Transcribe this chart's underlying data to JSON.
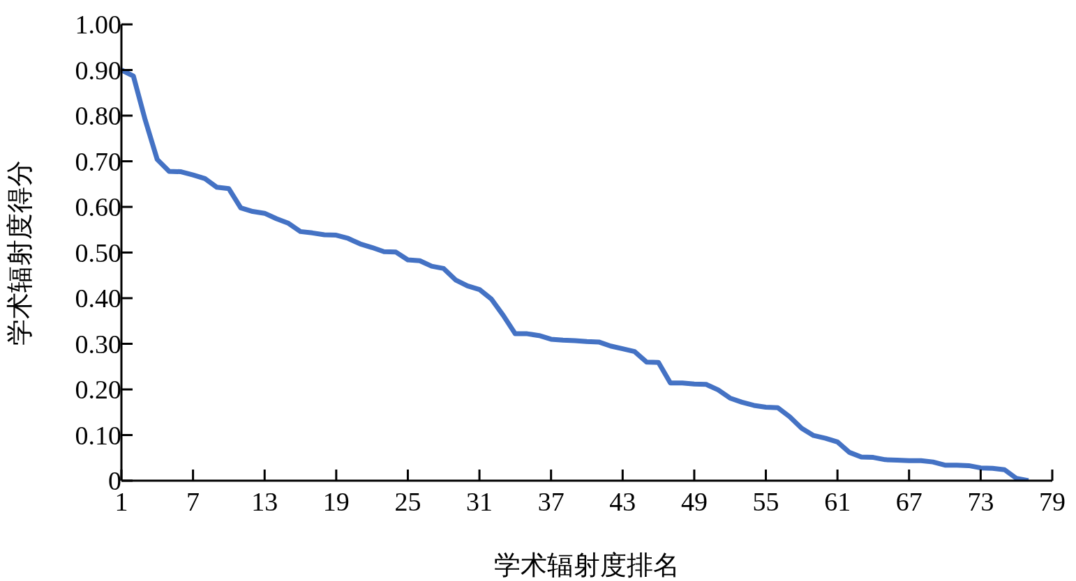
{
  "chart_data": {
    "type": "line",
    "xlabel": "学术辐射度排名",
    "ylabel": "学术辐射度得分",
    "x": [
      1,
      2,
      3,
      4,
      5,
      6,
      7,
      8,
      9,
      10,
      11,
      12,
      13,
      14,
      15,
      16,
      17,
      18,
      19,
      20,
      21,
      22,
      23,
      24,
      25,
      26,
      27,
      28,
      29,
      30,
      31,
      32,
      33,
      34,
      35,
      36,
      37,
      38,
      39,
      40,
      41,
      42,
      43,
      44,
      45,
      46,
      47,
      48,
      49,
      50,
      51,
      52,
      53,
      54,
      55,
      56,
      57,
      58,
      59,
      60,
      61,
      62,
      63,
      64,
      65,
      66,
      67,
      68,
      69,
      70,
      71,
      72,
      73,
      74,
      75,
      76,
      77
    ],
    "series": [
      {
        "color": "#4472c4",
        "values": [
          0.9,
          0.887,
          0.79,
          0.704,
          0.678,
          0.677,
          0.67,
          0.662,
          0.643,
          0.64,
          0.598,
          0.59,
          0.586,
          0.574,
          0.564,
          0.546,
          0.543,
          0.539,
          0.538,
          0.531,
          0.519,
          0.511,
          0.502,
          0.501,
          0.484,
          0.482,
          0.47,
          0.465,
          0.44,
          0.427,
          0.419,
          0.398,
          0.362,
          0.322,
          0.322,
          0.318,
          0.31,
          0.308,
          0.307,
          0.305,
          0.304,
          0.295,
          0.289,
          0.283,
          0.26,
          0.259,
          0.214,
          0.214,
          0.212,
          0.211,
          0.199,
          0.181,
          0.172,
          0.165,
          0.161,
          0.16,
          0.14,
          0.115,
          0.099,
          0.093,
          0.085,
          0.062,
          0.052,
          0.051,
          0.046,
          0.045,
          0.044,
          0.044,
          0.041,
          0.034,
          0.034,
          0.033,
          0.028,
          0.027,
          0.024,
          0.005,
          0
        ]
      }
    ],
    "xlim": [
      1,
      79
    ],
    "xticks": [
      1,
      7,
      13,
      19,
      25,
      31,
      37,
      43,
      49,
      55,
      61,
      67,
      73,
      79
    ],
    "ylim": [
      0,
      1
    ],
    "yticks": [
      0,
      {
        "value": 0.1,
        "label": "0.10"
      },
      {
        "value": 0.2,
        "label": "0.20"
      },
      {
        "value": 0.3,
        "label": "0.30"
      },
      {
        "value": 0.4,
        "label": "0.40"
      },
      {
        "value": 0.5,
        "label": "0.50"
      },
      {
        "value": 0.6,
        "label": "0.60"
      },
      {
        "value": 0.7,
        "label": "0.70"
      },
      {
        "value": 0.8,
        "label": "0.80"
      },
      {
        "value": 0.9,
        "label": "0.90"
      },
      {
        "value": 1,
        "label": "1.00"
      }
    ],
    "grid": false,
    "legend": false,
    "marker": "none",
    "line_style": "solid"
  }
}
